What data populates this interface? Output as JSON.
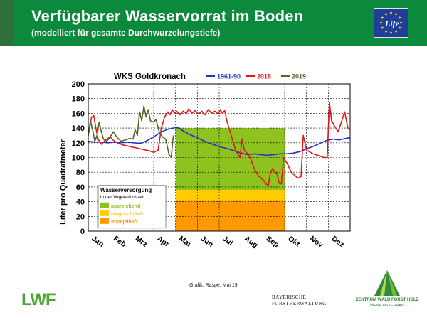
{
  "header": {
    "title": "Verfügbarer Wasservorrat im Boden",
    "subtitle": "(modelliert für gesamte Durchwurzelungstiefe)",
    "eu_logo_text": "Life"
  },
  "chart_data": {
    "type": "line",
    "title": "WKS Goldkronach",
    "ylabel": "Liter pro Quadratmeter",
    "xlabel": "",
    "ylim": [
      0,
      200
    ],
    "yticks": [
      0,
      20,
      40,
      60,
      80,
      100,
      120,
      140,
      160,
      180,
      200
    ],
    "categories": [
      "Jan",
      "Feb",
      "Mrz",
      "Apr",
      "Mai",
      "Jun",
      "Jul",
      "Aug",
      "Sep",
      "Okt",
      "Nov",
      "Dez"
    ],
    "grid": true,
    "legend_placement": "top",
    "series": [
      {
        "name": "1961-90",
        "color": "#1f35c8",
        "values": [
          [
            0.0,
            122
          ],
          [
            0.3,
            121
          ],
          [
            0.6,
            121
          ],
          [
            0.9,
            120
          ],
          [
            1.2,
            121
          ],
          [
            1.5,
            120
          ],
          [
            1.8,
            121
          ],
          [
            2.1,
            120
          ],
          [
            2.4,
            119
          ],
          [
            2.7,
            123
          ],
          [
            3.0,
            128
          ],
          [
            3.3,
            134
          ],
          [
            3.6,
            138
          ],
          [
            3.9,
            140
          ],
          [
            4.1,
            141
          ],
          [
            4.3,
            137
          ],
          [
            4.6,
            132
          ],
          [
            4.9,
            128
          ],
          [
            5.2,
            124
          ],
          [
            5.5,
            120
          ],
          [
            5.8,
            117
          ],
          [
            6.1,
            114
          ],
          [
            6.4,
            112
          ],
          [
            6.7,
            109
          ],
          [
            7.0,
            106
          ],
          [
            7.3,
            104
          ],
          [
            7.6,
            105
          ],
          [
            7.9,
            104
          ],
          [
            8.2,
            103
          ],
          [
            8.5,
            104
          ],
          [
            8.8,
            105
          ],
          [
            9.1,
            105
          ],
          [
            9.4,
            106
          ],
          [
            9.7,
            108
          ],
          [
            10.0,
            112
          ],
          [
            10.3,
            115
          ],
          [
            10.6,
            119
          ],
          [
            10.9,
            123
          ],
          [
            11.2,
            125
          ],
          [
            11.5,
            124
          ],
          [
            11.8,
            126
          ],
          [
            12.0,
            127
          ]
        ]
      },
      {
        "name": "2018",
        "color": "#e01a1a",
        "values": [
          [
            0.0,
            130
          ],
          [
            0.15,
            155
          ],
          [
            0.25,
            157
          ],
          [
            0.35,
            140
          ],
          [
            0.45,
            125
          ],
          [
            0.6,
            118
          ],
          [
            0.8,
            124
          ],
          [
            1.0,
            128
          ],
          [
            1.2,
            122
          ],
          [
            1.4,
            119
          ],
          [
            1.6,
            117
          ],
          [
            1.9,
            115
          ],
          [
            2.2,
            113
          ],
          [
            2.5,
            111
          ],
          [
            2.8,
            109
          ],
          [
            3.0,
            107
          ],
          [
            3.2,
            110
          ],
          [
            3.35,
            140
          ],
          [
            3.5,
            155
          ],
          [
            3.65,
            162
          ],
          [
            3.75,
            158
          ],
          [
            3.85,
            165
          ],
          [
            3.95,
            160
          ],
          [
            4.05,
            163
          ],
          [
            4.2,
            158
          ],
          [
            4.35,
            163
          ],
          [
            4.5,
            160
          ],
          [
            4.6,
            166
          ],
          [
            4.75,
            160
          ],
          [
            4.9,
            164
          ],
          [
            5.05,
            159
          ],
          [
            5.2,
            163
          ],
          [
            5.35,
            158
          ],
          [
            5.5,
            165
          ],
          [
            5.65,
            160
          ],
          [
            5.8,
            163
          ],
          [
            5.95,
            159
          ],
          [
            6.05,
            165
          ],
          [
            6.15,
            160
          ],
          [
            6.25,
            164
          ],
          [
            6.35,
            150
          ],
          [
            6.55,
            130
          ],
          [
            6.75,
            110
          ],
          [
            6.95,
            100
          ],
          [
            7.05,
            125
          ],
          [
            7.15,
            110
          ],
          [
            7.3,
            105
          ],
          [
            7.45,
            98
          ],
          [
            7.6,
            85
          ],
          [
            7.8,
            75
          ],
          [
            8.0,
            70
          ],
          [
            8.15,
            64
          ],
          [
            8.25,
            62
          ],
          [
            8.35,
            80
          ],
          [
            8.45,
            85
          ],
          [
            8.55,
            80
          ],
          [
            8.65,
            78
          ],
          [
            8.75,
            65
          ],
          [
            8.85,
            64
          ],
          [
            8.95,
            100
          ],
          [
            9.05,
            95
          ],
          [
            9.15,
            90
          ],
          [
            9.3,
            80
          ],
          [
            9.45,
            76
          ],
          [
            9.6,
            72
          ],
          [
            9.75,
            74
          ],
          [
            9.85,
            130
          ],
          [
            10.0,
            110
          ],
          [
            10.3,
            105
          ],
          [
            10.6,
            102
          ],
          [
            10.8,
            100
          ],
          [
            10.95,
            100
          ],
          [
            11.05,
            175
          ],
          [
            11.15,
            150
          ],
          [
            11.3,
            142
          ],
          [
            11.45,
            135
          ],
          [
            11.6,
            148
          ],
          [
            11.75,
            162
          ],
          [
            11.9,
            140
          ],
          [
            12.0,
            138
          ]
        ]
      },
      {
        "name": "2019",
        "color": "#4d6a2b",
        "values": [
          [
            0.0,
            130
          ],
          [
            0.1,
            150
          ],
          [
            0.2,
            138
          ],
          [
            0.3,
            122
          ],
          [
            0.4,
            130
          ],
          [
            0.5,
            148
          ],
          [
            0.6,
            135
          ],
          [
            0.7,
            125
          ],
          [
            0.85,
            122
          ],
          [
            1.0,
            128
          ],
          [
            1.15,
            135
          ],
          [
            1.3,
            128
          ],
          [
            1.5,
            122
          ],
          [
            1.7,
            124
          ],
          [
            1.9,
            126
          ],
          [
            2.05,
            125
          ],
          [
            2.15,
            138
          ],
          [
            2.25,
            130
          ],
          [
            2.35,
            162
          ],
          [
            2.45,
            150
          ],
          [
            2.55,
            170
          ],
          [
            2.65,
            155
          ],
          [
            2.75,
            165
          ],
          [
            2.85,
            150
          ],
          [
            3.0,
            148
          ],
          [
            3.1,
            152
          ],
          [
            3.25,
            135
          ],
          [
            3.4,
            128
          ],
          [
            3.55,
            125
          ],
          [
            3.7,
            104
          ],
          [
            3.8,
            100
          ],
          [
            3.9,
            130
          ]
        ]
      }
    ],
    "areas": [
      {
        "label": "ausreichend",
        "from": 56,
        "to": 140,
        "x_start": "Mai",
        "x_end": "Okt",
        "color": "#8dc21f"
      },
      {
        "label": "eingeschränkt",
        "from": 42,
        "to": 56,
        "x_start": "Mai",
        "x_end": "Okt",
        "color": "#ffcc00"
      },
      {
        "label": "mangelhaft",
        "from": 0,
        "to": 42,
        "x_start": "Mai",
        "x_end": "Okt",
        "color": "#ff9900"
      }
    ],
    "area_legend": {
      "title": "Wasserversorgung",
      "subtitle": "in der Vegetationszeit",
      "items": [
        "ausreichend",
        "eingeschränkt",
        "mangelhaft"
      ]
    }
  },
  "footer": {
    "credit": "Grafik: Raspe, Mai 19",
    "lwf_logo": "LWF",
    "bayer_line1": "BAYERISCHE",
    "bayer_line2": "FORSTVERWALTUNG",
    "zwf_line1": "ZENTRUM WALD FORST HOLZ",
    "zwf_line2": "WEIHENSTEPHAN"
  }
}
